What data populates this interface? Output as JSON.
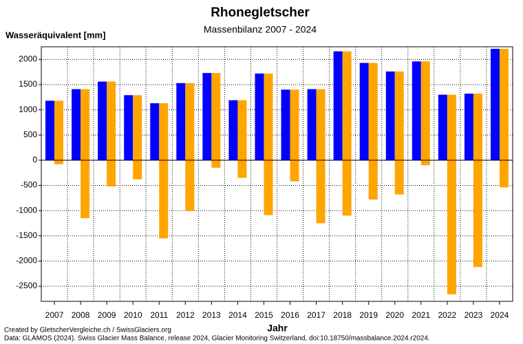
{
  "chart_data": {
    "type": "bar",
    "title": "Rhonegletscher",
    "subtitle": "Massenbilanz 2007 - 2024",
    "y_label": "Wasseräquivalent [mm]",
    "x_label": "Jahr",
    "credits": [
      "Created by GletscherVergleiche.ch / SwissGlaciers.org",
      "Data: GLAMOS (2024). Swiss Glacier Mass Balance, release 2024, Glacier Monitoring Switzerland, doi:10.18750/massbalance.2024.r2024."
    ],
    "categories": [
      "2007",
      "2008",
      "2009",
      "2010",
      "2011",
      "2012",
      "2013",
      "2014",
      "2015",
      "2016",
      "2017",
      "2018",
      "2019",
      "2020",
      "2021",
      "2022",
      "2023",
      "2024"
    ],
    "series": [
      {
        "color": "#0000ff",
        "values": [
          1180,
          1410,
          1560,
          1290,
          1130,
          1530,
          1730,
          1190,
          1720,
          1400,
          1410,
          2160,
          1930,
          1760,
          1960,
          1300,
          1320,
          2210
        ]
      },
      {
        "color": "#ffa500",
        "values": [
          -80,
          -1150,
          -520,
          -380,
          -1550,
          -1010,
          -150,
          -350,
          -1090,
          -420,
          -1250,
          -1100,
          -780,
          -680,
          -100,
          -2660,
          -2120,
          -540
        ]
      }
    ],
    "ylim": [
      -2800,
      2250
    ],
    "yticks": [
      -2500,
      -2000,
      -1500,
      -1000,
      -500,
      0,
      500,
      1000,
      1500,
      2000
    ],
    "grid": true
  }
}
